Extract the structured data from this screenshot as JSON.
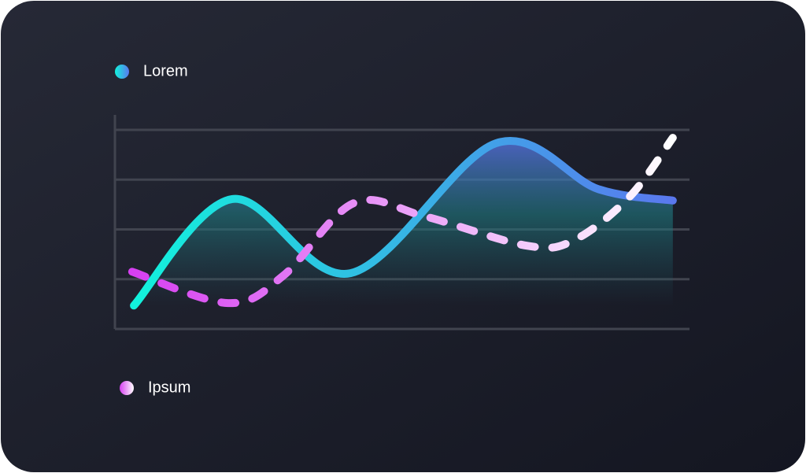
{
  "chart_data": {
    "type": "line",
    "xlim": [
      0,
      10
    ],
    "ylim": [
      0,
      4.3
    ],
    "yticks": [
      1,
      2,
      3,
      4
    ],
    "grid": true,
    "series": [
      {
        "name": "Lorem",
        "color": [
          "#12f2dc",
          "#5a78ee"
        ],
        "style": "solid",
        "area": true,
        "x": [
          0.33,
          2.04,
          4.1,
          6.63,
          8.41,
          9.71
        ],
        "values": [
          0.47,
          2.61,
          1.12,
          3.73,
          2.81,
          2.58
        ]
      },
      {
        "name": "Ipsum",
        "color": [
          "#d63ff0",
          "#ffffff"
        ],
        "style": "dashed",
        "x": [
          0.3,
          1.97,
          2.93,
          4.16,
          5.4,
          7.18,
          8.0,
          8.96,
          9.71
        ],
        "values": [
          1.15,
          0.52,
          1.07,
          2.53,
          2.26,
          1.67,
          1.79,
          2.66,
          3.84
        ]
      }
    ]
  }
}
